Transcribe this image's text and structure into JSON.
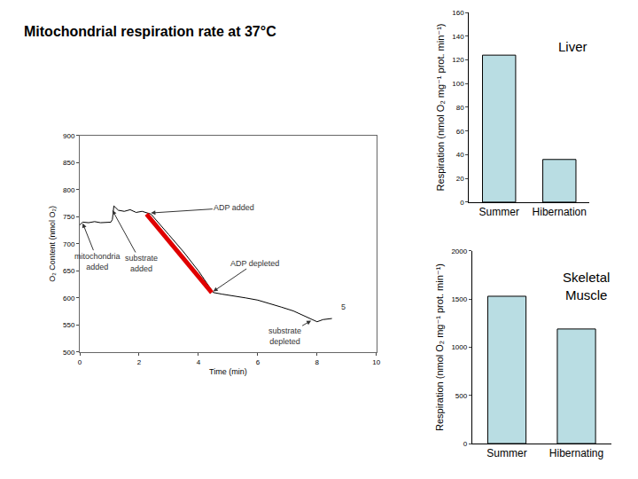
{
  "title": "Mitochondrial respiration rate at 37°C",
  "chart_data": [
    {
      "type": "line",
      "x_label": "Time (min)",
      "y_label": "O₂ Content (nmol O₂)",
      "xlim": [
        0,
        10
      ],
      "xticks": [
        0,
        2,
        4,
        6,
        8,
        10
      ],
      "ylim": [
        500,
        900
      ],
      "yticks": [
        500,
        550,
        600,
        650,
        700,
        750,
        800,
        850,
        900
      ],
      "grid": false,
      "series": [
        {
          "color": "#000000",
          "x": [
            0,
            0.1,
            0.3,
            0.5,
            0.7,
            0.9,
            1.05,
            1.1,
            1.15,
            1.3,
            1.5,
            1.7,
            1.9,
            2.1,
            2.3,
            2.4,
            3.0,
            3.5,
            4.0,
            4.5,
            4.8,
            5.2,
            5.6,
            6.0,
            6.4,
            6.8,
            7.2,
            7.5,
            7.8,
            8.0,
            8.2,
            8.5
          ],
          "values": [
            735,
            740,
            739,
            741,
            739,
            740,
            740,
            745,
            770,
            762,
            760,
            763,
            758,
            760,
            757,
            755,
            717,
            685,
            650,
            610,
            607,
            604,
            600,
            596,
            590,
            583,
            576,
            568,
            560,
            556,
            560,
            562
          ]
        },
        {
          "color": "#e00000",
          "x": [
            2.25,
            4.45
          ],
          "values": [
            755,
            610
          ]
        }
      ],
      "annotations": [
        {
          "text": "mitochondria\nadded",
          "x": 0.1,
          "y": 738
        },
        {
          "text": "substrate\nadded",
          "x": 1.1,
          "y": 762
        },
        {
          "text": "ADP added",
          "x": 2.4,
          "y": 757
        },
        {
          "text": "ADP depleted",
          "x": 4.5,
          "y": 612
        },
        {
          "text": "substrate\ndepleted",
          "x": 7.8,
          "y": 558
        },
        {
          "text": "5",
          "x": 8.9,
          "y": 583
        }
      ]
    },
    {
      "type": "bar",
      "label": "Liver",
      "y_label": "Respiration (nmol O₂ mg⁻¹ prot. min⁻¹)",
      "categories": [
        "Summer",
        "Hibernation"
      ],
      "values": [
        124,
        36
      ],
      "color": "#b9dde3",
      "ylim": [
        0,
        160
      ],
      "yticks": [
        0,
        20,
        40,
        60,
        80,
        100,
        120,
        140,
        160
      ],
      "grid": false
    },
    {
      "type": "bar",
      "label": "Skeletal\nMuscle",
      "y_label": "Respiration (nmol O₂ mg⁻¹ prot. min⁻¹)",
      "categories": [
        "Summer",
        "Hibernating"
      ],
      "values": [
        1530,
        1190
      ],
      "color": "#b9dde3",
      "ylim": [
        0,
        2000
      ],
      "yticks": [
        0,
        500,
        1000,
        1500,
        2000
      ],
      "grid": false
    }
  ]
}
